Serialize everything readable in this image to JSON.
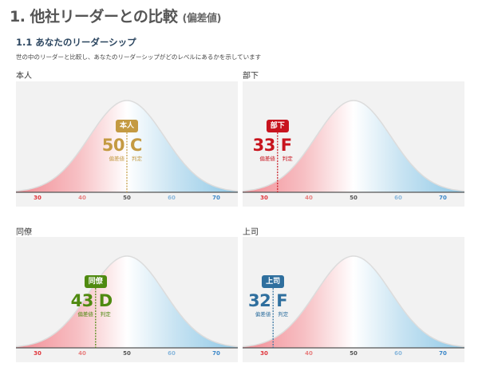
{
  "page": {
    "title": "1. 他社リーダーとの比較",
    "title_sub": "(偏差値)",
    "section": "1.1 あなたのリーダーシップ",
    "description": "世の中のリーダーと比較し、あなたのリーダーシップがどのレベルにあるかを示しています"
  },
  "axis_ticks": [
    {
      "value": "30",
      "color": "#e0343a"
    },
    {
      "value": "40",
      "color": "#e88080"
    },
    {
      "value": "50",
      "color": "#555555"
    },
    {
      "value": "60",
      "color": "#8ab8dc"
    },
    {
      "value": "70",
      "color": "#3a86c8"
    }
  ],
  "value_caption": "偏差値",
  "grade_caption": "判定",
  "panels": [
    {
      "label": "本人",
      "badge": "本人",
      "score": "50",
      "score_value": 50,
      "grade": "C",
      "color": "#c49a42"
    },
    {
      "label": "部下",
      "badge": "部下",
      "score": "33",
      "score_value": 33,
      "grade": "F",
      "color": "#c8141e"
    },
    {
      "label": "同僚",
      "badge": "同僚",
      "score": "43",
      "score_value": 43,
      "grade": "D",
      "color": "#4f8a10"
    },
    {
      "label": "上司",
      "badge": "上司",
      "score": "32",
      "score_value": 32,
      "grade": "F",
      "color": "#2f6f9e"
    }
  ]
}
